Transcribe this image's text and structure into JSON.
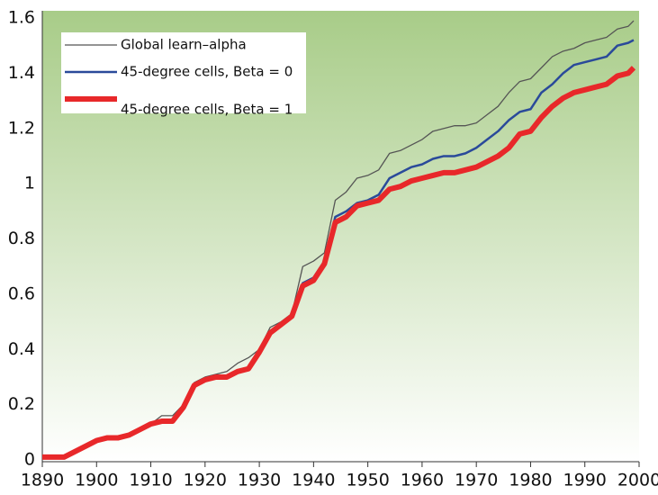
{
  "chart_data": {
    "type": "line",
    "x": [
      1890,
      1892,
      1894,
      1896,
      1898,
      1900,
      1902,
      1904,
      1906,
      1908,
      1910,
      1912,
      1914,
      1916,
      1918,
      1920,
      1922,
      1924,
      1926,
      1928,
      1930,
      1932,
      1934,
      1936,
      1938,
      1940,
      1942,
      1944,
      1946,
      1948,
      1950,
      1952,
      1954,
      1956,
      1958,
      1960,
      1962,
      1964,
      1966,
      1968,
      1970,
      1972,
      1974,
      1976,
      1978,
      1980,
      1982,
      1984,
      1986,
      1988,
      1990,
      1992,
      1994,
      1996,
      1998,
      1999
    ],
    "series": [
      {
        "name": "Global learn–alpha",
        "color": "#555555",
        "width": 1.3,
        "values": [
          0.01,
          0.01,
          0.01,
          0.03,
          0.05,
          0.07,
          0.08,
          0.08,
          0.09,
          0.11,
          0.13,
          0.16,
          0.16,
          0.2,
          0.28,
          0.3,
          0.31,
          0.32,
          0.35,
          0.37,
          0.4,
          0.48,
          0.5,
          0.53,
          0.7,
          0.72,
          0.75,
          0.94,
          0.97,
          1.02,
          1.03,
          1.05,
          1.11,
          1.12,
          1.14,
          1.16,
          1.19,
          1.2,
          1.21,
          1.21,
          1.22,
          1.25,
          1.28,
          1.33,
          1.37,
          1.38,
          1.42,
          1.46,
          1.48,
          1.49,
          1.51,
          1.52,
          1.53,
          1.56,
          1.57,
          1.59
        ]
      },
      {
        "name": "45-degree cells, Beta = 0",
        "color": "#2a4a9a",
        "width": 2.5,
        "values": [
          0.01,
          0.01,
          0.01,
          0.03,
          0.05,
          0.07,
          0.08,
          0.08,
          0.09,
          0.11,
          0.13,
          0.14,
          0.14,
          0.19,
          0.27,
          0.29,
          0.3,
          0.3,
          0.32,
          0.33,
          0.39,
          0.46,
          0.49,
          0.52,
          0.64,
          0.66,
          0.72,
          0.88,
          0.9,
          0.93,
          0.94,
          0.96,
          1.02,
          1.04,
          1.06,
          1.07,
          1.09,
          1.1,
          1.1,
          1.11,
          1.13,
          1.16,
          1.19,
          1.23,
          1.26,
          1.27,
          1.33,
          1.36,
          1.4,
          1.43,
          1.44,
          1.45,
          1.46,
          1.5,
          1.51,
          1.52
        ]
      },
      {
        "name": "45-degree cells, Beta = 1",
        "color": "#e8282a",
        "width": 6,
        "values": [
          0.01,
          0.01,
          0.01,
          0.03,
          0.05,
          0.07,
          0.08,
          0.08,
          0.09,
          0.11,
          0.13,
          0.14,
          0.14,
          0.19,
          0.27,
          0.29,
          0.3,
          0.3,
          0.32,
          0.33,
          0.39,
          0.46,
          0.49,
          0.52,
          0.63,
          0.65,
          0.71,
          0.86,
          0.88,
          0.92,
          0.93,
          0.94,
          0.98,
          0.99,
          1.01,
          1.02,
          1.03,
          1.04,
          1.04,
          1.05,
          1.06,
          1.08,
          1.1,
          1.13,
          1.18,
          1.19,
          1.24,
          1.28,
          1.31,
          1.33,
          1.34,
          1.35,
          1.36,
          1.39,
          1.4,
          1.42
        ]
      }
    ],
    "xlim": [
      1890,
      2000
    ],
    "xticks": [
      1890,
      1900,
      1910,
      1920,
      1930,
      1940,
      1950,
      1960,
      1970,
      1980,
      1990,
      2000
    ],
    "ylim": [
      0,
      1.6
    ],
    "yticks": [
      0,
      0.2,
      0.4,
      0.6,
      0.8,
      1,
      1.2,
      1.4,
      1.6
    ],
    "legend": "top-left",
    "background": [
      "#a8cc88",
      "#ffffff"
    ]
  }
}
